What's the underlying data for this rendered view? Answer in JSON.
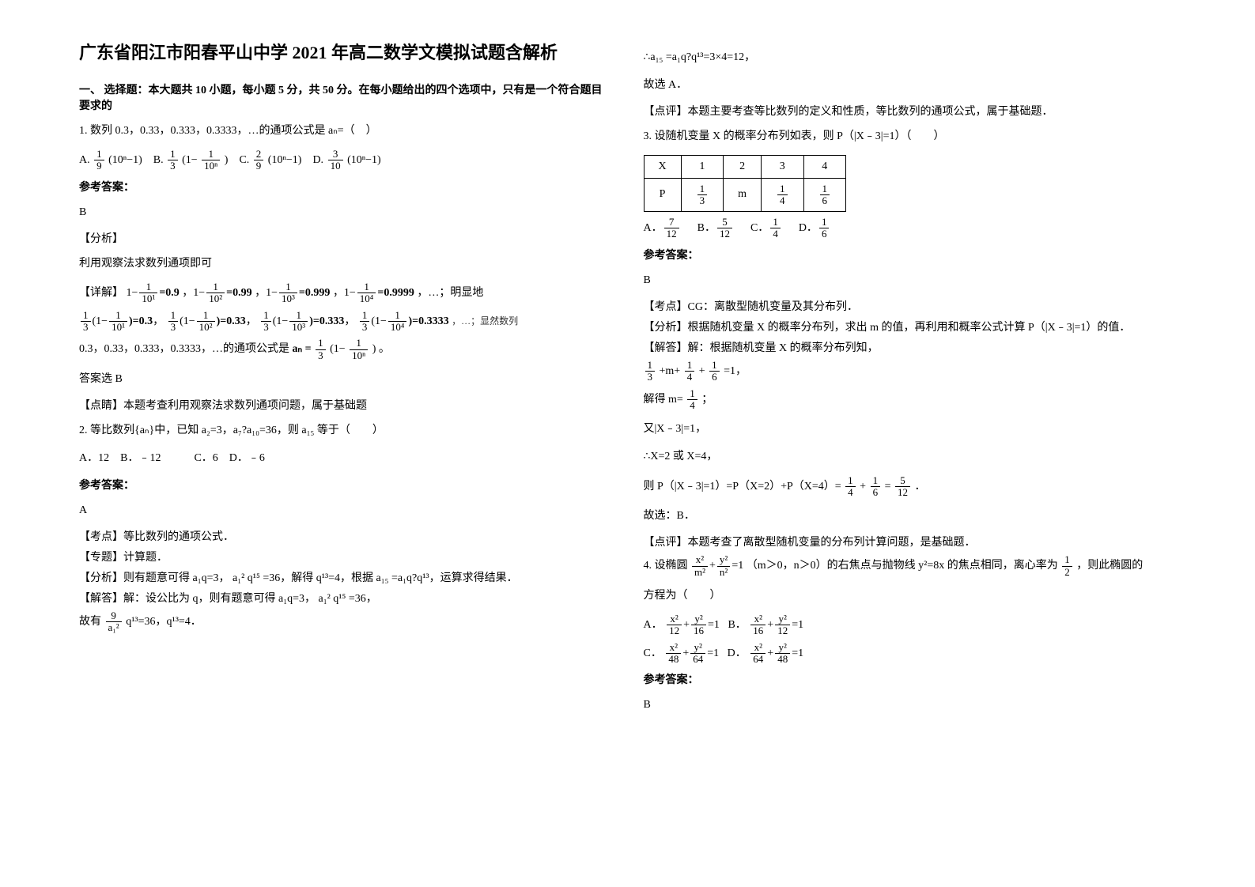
{
  "title": "广东省阳江市阳春平山中学 2021 年高二数学文模拟试题含解析",
  "section1_head": "一、 选择题：本大题共 10 小题，每小题 5 分，共 50 分。在每小题给出的四个选项中，只有是一个符合题目要求的",
  "q1_text": "1. 数列 0.3，0.33，0.333，0.3333，…的通项公式是 aₙ=（　）",
  "q1_optA_pre": "A.",
  "q1_optA_expr": "(10ⁿ−1)",
  "q1_optB_pre": "B.",
  "q1_optB_expr": "(1−",
  "q1_optB_expr2": ")",
  "q1_optC_pre": "C.",
  "q1_optC_expr": "(10ⁿ−1)",
  "q1_optD_pre": "D.",
  "q1_optD_expr": "(10ⁿ−1)",
  "ref_ans_label": "参考答案：",
  "q1_ans": "B",
  "q1_parse_label": "【分析】",
  "q1_parse_text": "利用观察法求数列通项即可",
  "q1_detail_label": "【详解】",
  "q1_detail_line1a": "1−",
  "q1_detail_line1b": "=0.9",
  "q1_detail_line1c": "，1−",
  "q1_detail_line1d": "=0.99",
  "q1_detail_line1e": "，1−",
  "q1_detail_line1f": "=0.999",
  "q1_detail_line1g": "，1−",
  "q1_detail_line1h": "=0.9999",
  "q1_detail_line1i": "，…；明显地",
  "q1_detail_line2a": "(1−",
  "q1_detail_line2b": ")=0.3",
  "q1_detail_line2c": "，",
  "q1_detail_line2d": "(1−",
  "q1_detail_line2e": ")=0.33",
  "q1_detail_line2f": "，",
  "q1_detail_line2g": "(1−",
  "q1_detail_line2h": ")=0.333",
  "q1_detail_line2i": "，",
  "q1_detail_line2j": "(1−",
  "q1_detail_line2k": ")=0.3333",
  "q1_detail_line2l": "，…；显然数列",
  "q1_detail_line3": "0.3，0.33，0.333，0.3333，…的通项公式是",
  "q1_detail_line3b": "aₙ =",
  "q1_detail_line3c": "(1−",
  "q1_detail_line3d": ")",
  "q1_detail_line3e": "。",
  "q1_pick": "答案选 B",
  "q1_note_label": "【点睛】",
  "q1_note": "本题考查利用观察法求数列通项问题，属于基础题",
  "q2_text": "2. 等比数列{aₙ}中，已知 a₂=3，a₇?a₁₀=36，则 a₁₅ 等于（　　）",
  "q2_opts": "A．12　B．﹣12　　　C．6　D．﹣6",
  "q2_ans": "A",
  "q2_kp_label": "【考点】",
  "q2_kp": "等比数列的通项公式．",
  "q2_zt_label": "【专题】",
  "q2_zt": "计算题．",
  "q2_fx_label": "【分析】",
  "q2_fx": "则有题意可得 a₁q=3，",
  "q2_fx_mid": "a₁² q¹⁵",
  "q2_fx2": "=36，解得 q¹³=4，根据 a₁₅ =a₁q?q¹³，运算求得结果．",
  "q2_jd_label": "【解答】",
  "q2_jd": "解：设公比为 q，则有题意可得 a₁q=3，",
  "q2_jd_mid": "a₁² q¹⁵",
  "q2_jd2": "=36，",
  "q2_jd3a": "故有",
  "q2_jd3b": "q¹³=36，q¹³=4．",
  "q2_r1": "∴a₁₅ =a₁q?q¹³=3×4=12，",
  "q2_r2": "故选 A．",
  "q2_dp_label": "【点评】",
  "q2_dp": "本题主要考查等比数列的定义和性质，等比数列的通项公式，属于基础题．",
  "q3_text": "3. 设随机变量 X 的概率分布列如表，则 P（|X﹣3|=1）（　　）",
  "q3_tbl_h1": "X",
  "q3_tbl_h2": "1",
  "q3_tbl_h3": "2",
  "q3_tbl_h4": "3",
  "q3_tbl_h5": "4",
  "q3_tbl_p": "P",
  "q3_tbl_p2": "m",
  "q3_optA": "A．",
  "q3_optB": "B．",
  "q3_optC": "C．",
  "q3_optD": "D．",
  "q3_ans": "B",
  "q3_kp_label": "【考点】",
  "q3_kp": "CG：离散型随机变量及其分布列．",
  "q3_fx_label": "【分析】",
  "q3_fx": "根据随机变量 X 的概率分布列，求出 m 的值，再利用和概率公式计算 P（|X﹣3|=1）的值．",
  "q3_jd_label": "【解答】",
  "q3_jd": "解：根据随机变量 X 的概率分布列知，",
  "q3_jd_l1a": "+m+",
  "q3_jd_l1b": "+",
  "q3_jd_l1c": "=1，",
  "q3_jd_l2a": "解得 m=",
  "q3_jd_l2b": "；",
  "q3_jd_l3": "又|X﹣3|=1，",
  "q3_jd_l4": "∴X=2 或 X=4，",
  "q3_jd_l5a": "则 P（|X﹣3|=1）=P（X=2）+P（X=4）=",
  "q3_jd_l5b": "+",
  "q3_jd_l5c": "=",
  "q3_jd_l5d": "．",
  "q3_pick": "故选：B．",
  "q3_dp_label": "【点评】",
  "q3_dp": "本题考查了离散型随机变量的分布列计算问题，是基础题．",
  "q4_text_a": "4. 设椭圆",
  "q4_text_b": "（m＞0，n＞0）的右焦点与抛物线 y²=8x 的焦点相同，离心率为",
  "q4_text_c": "，则此椭圆的",
  "q4_text_d": "方程为（　　）",
  "q4_optA": "A．",
  "q4_optB": "B．",
  "q4_optC": "C．",
  "q4_optD": "D．",
  "q4_ans": "B",
  "frac_1_9_n": "1",
  "frac_1_9_d": "9",
  "frac_1_3_n": "1",
  "frac_1_3_d": "3",
  "frac_2_9_n": "2",
  "frac_2_9_d": "9",
  "frac_3_10_n": "3",
  "frac_3_10_d": "10",
  "frac_1_10n_n": "1",
  "frac_1_10n_d": "10ⁿ",
  "frac_1_101_n": "1",
  "frac_1_101_d": "10¹",
  "frac_1_102_n": "1",
  "frac_1_102_d": "10²",
  "frac_1_103_n": "1",
  "frac_1_103_d": "10³",
  "frac_1_104_n": "1",
  "frac_1_104_d": "10⁴",
  "frac_9_a12_n": "9",
  "frac_9_a12_d": "a₁²",
  "frac_1_3t_n": "1",
  "frac_1_3t_d": "3",
  "frac_1_4_n": "1",
  "frac_1_4_d": "4",
  "frac_1_6_n": "1",
  "frac_1_6_d": "6",
  "frac_7_12_n": "7",
  "frac_7_12_d": "12",
  "frac_5_12_n": "5",
  "frac_5_12_d": "12",
  "frac_1_2_n": "1",
  "frac_1_2_d": "2",
  "frac_x2_m2_n": "x²",
  "frac_x2_m2_d": "m²",
  "frac_y2_n2_n": "y²",
  "frac_y2_n2_d": "n²",
  "eq1": "+",
  "eq2": "=1",
  "frac_x2_12_n": "x²",
  "frac_x2_12_d": "12",
  "frac_y2_16_n": "y²",
  "frac_y2_16_d": "16",
  "frac_x2_16_n": "x²",
  "frac_x2_16_d": "16",
  "frac_y2_12_n": "y²",
  "frac_y2_12_d": "12",
  "frac_x2_48_n": "x²",
  "frac_x2_48_d": "48",
  "frac_y2_64_n": "y²",
  "frac_y2_64_d": "64",
  "frac_x2_64_n": "x²",
  "frac_x2_64_d": "64",
  "frac_y2_48_n": "y²",
  "frac_y2_48_d": "48"
}
